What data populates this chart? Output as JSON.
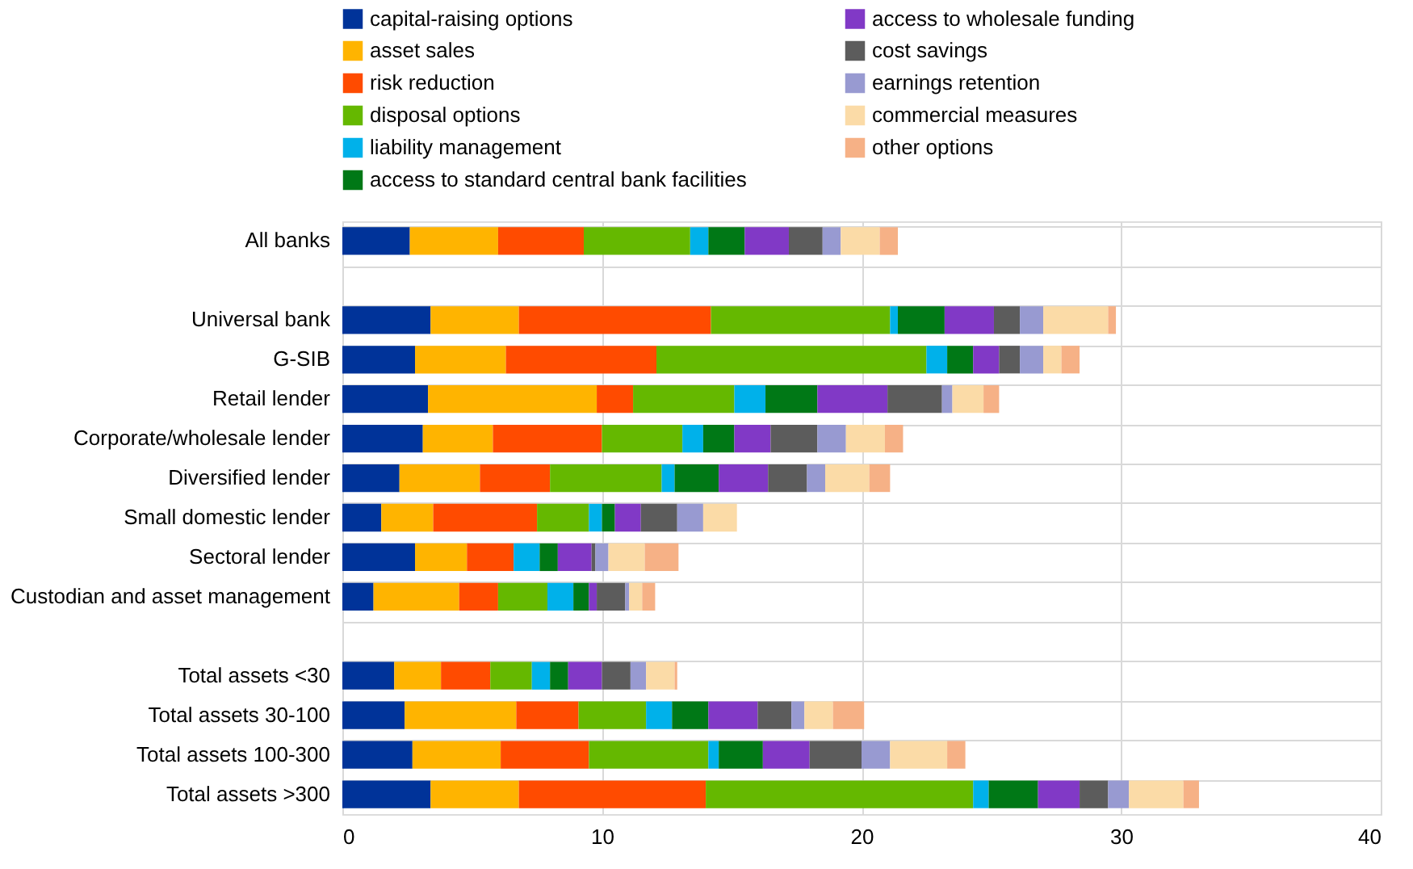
{
  "chart_data": {
    "type": "bar",
    "orientation": "horizontal",
    "stacked": true,
    "legend": "top",
    "grid": true,
    "xlim": [
      0,
      40
    ],
    "xticks": [
      0,
      10,
      20,
      30,
      40
    ],
    "categories": [
      "All banks",
      null,
      "Universal bank",
      "G-SIB",
      "Retail lender",
      "Corporate/wholesale lender",
      "Diversified lender",
      "Small domestic lender",
      "Sectoral lender",
      "Custodian and asset management",
      null,
      "Total assets <30",
      "Total assets 30-100",
      "Total assets 100-300",
      "Total assets >300"
    ],
    "series": [
      {
        "name": "capital-raising options",
        "color": "#003399",
        "values": [
          2.6,
          null,
          3.4,
          2.8,
          3.3,
          3.1,
          2.2,
          1.5,
          2.8,
          1.2,
          null,
          2.0,
          2.4,
          2.7,
          3.4
        ]
      },
      {
        "name": "asset sales",
        "color": "#ffb400",
        "values": [
          3.4,
          null,
          3.4,
          3.5,
          6.5,
          2.7,
          3.1,
          2.0,
          2.0,
          3.3,
          null,
          1.8,
          4.3,
          3.4,
          3.4
        ]
      },
      {
        "name": "risk reduction",
        "color": "#ff4b00",
        "values": [
          3.3,
          null,
          7.4,
          5.8,
          1.4,
          4.2,
          2.7,
          4.0,
          1.8,
          1.5,
          null,
          1.9,
          2.4,
          3.4,
          7.2
        ]
      },
      {
        "name": "disposal options",
        "color": "#65b800",
        "values": [
          4.1,
          null,
          6.9,
          10.4,
          3.9,
          3.1,
          4.3,
          2.0,
          0,
          1.9,
          null,
          1.6,
          2.6,
          4.6,
          10.3
        ]
      },
      {
        "name": "liability management",
        "color": "#00b1ea",
        "values": [
          0.7,
          null,
          0.3,
          0.8,
          1.2,
          0.8,
          0.5,
          0.5,
          1.0,
          1.0,
          null,
          0.7,
          1.0,
          0.4,
          0.6
        ]
      },
      {
        "name": "access to standard central bank facilities",
        "color": "#007816",
        "values": [
          1.4,
          null,
          1.8,
          1.0,
          2.0,
          1.2,
          1.7,
          0.5,
          0.7,
          0.6,
          null,
          0.7,
          1.4,
          1.7,
          1.9
        ]
      },
      {
        "name": "access to wholesale funding",
        "color": "#8139c6",
        "values": [
          1.7,
          null,
          1.9,
          1.0,
          2.7,
          1.4,
          1.9,
          1.0,
          1.3,
          0.3,
          null,
          1.3,
          1.9,
          1.8,
          1.6
        ]
      },
      {
        "name": "cost savings",
        "color": "#5c5c5c",
        "values": [
          1.3,
          null,
          1.0,
          0.8,
          2.1,
          1.8,
          1.5,
          1.4,
          0.15,
          1.1,
          null,
          1.1,
          1.3,
          2.0,
          1.1
        ]
      },
      {
        "name": "earnings retention",
        "color": "#989ad1",
        "values": [
          0.7,
          null,
          0.9,
          0.9,
          0.4,
          1.1,
          0.7,
          1.0,
          0.5,
          0.15,
          null,
          0.6,
          0.5,
          1.1,
          0.8
        ]
      },
      {
        "name": "commercial measures",
        "color": "#fbdba7",
        "values": [
          1.5,
          null,
          2.5,
          0.7,
          1.2,
          1.5,
          1.7,
          1.3,
          1.4,
          0.5,
          null,
          1.1,
          1.1,
          2.2,
          2.1
        ]
      },
      {
        "name": "other options",
        "color": "#f6b186",
        "values": [
          0.7,
          null,
          0.3,
          0.7,
          0.6,
          0.7,
          0.8,
          0,
          1.3,
          0.5,
          null,
          0.1,
          1.2,
          0.7,
          0.6
        ]
      }
    ]
  }
}
